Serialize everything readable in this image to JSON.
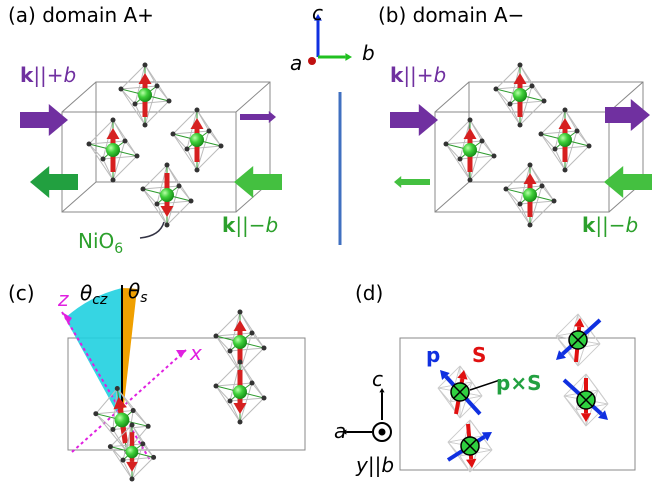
{
  "panel_a": {
    "title": "(a) domain A+",
    "k_plus": {
      "k": "k",
      "rel": "||+",
      "axis": "b"
    },
    "k_minus": {
      "k": "k",
      "rel": "||−",
      "axis": "b"
    },
    "octahedron": {
      "main": "NiO",
      "sub": "6"
    }
  },
  "axes": {
    "c": "c",
    "a": "a",
    "b": "b"
  },
  "panel_b": {
    "title": "(b) domain A−",
    "k_plus": {
      "k": "k",
      "rel": "||+",
      "axis": "b"
    },
    "k_minus": {
      "k": "k",
      "rel": "||−",
      "axis": "b"
    }
  },
  "panel_c": {
    "title": "(c)",
    "theta_cz": {
      "symbol": "θ",
      "sub": "cz"
    },
    "theta_s": {
      "symbol": "θ",
      "sub": "s"
    },
    "z": "z",
    "x": "x"
  },
  "panel_d": {
    "title": "(d)",
    "p": "p",
    "S": "S",
    "p_cross_S": "p×S",
    "axis_c": "c",
    "axis_a": "a",
    "axis_y": "y||b"
  }
}
